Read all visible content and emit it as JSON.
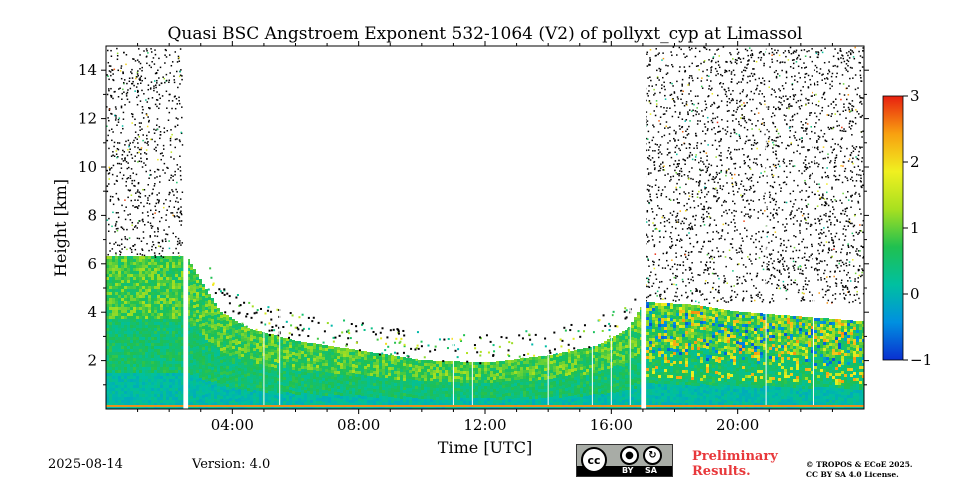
{
  "title": "Quasi BSC Angstroem Exponent 532-1064 (V2) of pollyxt_cyp at Limassol",
  "chart_data": {
    "type": "heatmap",
    "title": "Quasi BSC Angstroem Exponent 532-1064 (V2) of pollyxt_cyp at Limassol",
    "xlabel": "Time [UTC]",
    "ylabel": "Height [km]",
    "xlim_hours": [
      0,
      24
    ],
    "ylim_km": [
      0,
      15
    ],
    "xticks": [
      {
        "hour": 4,
        "label": "04:00"
      },
      {
        "hour": 8,
        "label": "08:00"
      },
      {
        "hour": 12,
        "label": "12:00"
      },
      {
        "hour": 16,
        "label": "16:00"
      },
      {
        "hour": 20,
        "label": "20:00"
      }
    ],
    "yticks": [
      {
        "km": 2,
        "label": "2"
      },
      {
        "km": 4,
        "label": "4"
      },
      {
        "km": 6,
        "label": "6"
      },
      {
        "km": 8,
        "label": "8"
      },
      {
        "km": 10,
        "label": "10"
      },
      {
        "km": 12,
        "label": "12"
      },
      {
        "km": 14,
        "label": "14"
      }
    ],
    "colorbar": {
      "min": -1,
      "max": 3,
      "ticks": [
        {
          "value": 3,
          "label": "3"
        },
        {
          "value": 2,
          "label": "2"
        },
        {
          "value": 1,
          "label": "1"
        },
        {
          "value": 0,
          "label": "0"
        },
        {
          "value": -1,
          "label": "−1"
        }
      ],
      "colors": [
        "#0a2fd0",
        "#0090e0",
        "#00c0a0",
        "#20c050",
        "#a8e020",
        "#f0f020",
        "#f8a010",
        "#e82010"
      ]
    },
    "layer_top_km": [
      [
        0,
        6.3
      ],
      [
        2.5,
        6.3
      ],
      [
        3.2,
        4.8
      ],
      [
        3.6,
        4.0
      ],
      [
        4.5,
        3.3
      ],
      [
        6.0,
        2.8
      ],
      [
        8.0,
        2.4
      ],
      [
        10.0,
        2.0
      ],
      [
        12.0,
        1.9
      ],
      [
        14.0,
        2.2
      ],
      [
        15.5,
        2.6
      ],
      [
        16.5,
        3.3
      ],
      [
        17.0,
        4.4
      ],
      [
        18.5,
        4.3
      ],
      [
        20.0,
        4.0
      ],
      [
        22.0,
        3.8
      ],
      [
        24.0,
        3.6
      ]
    ],
    "data_gaps_hours": [
      [
        2.45,
        2.6
      ],
      [
        16.95,
        17.1
      ]
    ],
    "noise_regions": [
      {
        "from_hour": 0.0,
        "to_hour": 2.4,
        "from_km": 6.3,
        "to_km": 15.0
      },
      {
        "from_hour": 17.0,
        "to_hour": 24.0,
        "from_km": 4.4,
        "to_km": 15.0
      }
    ]
  },
  "footer": {
    "date": "2025-08-14",
    "version": "Version: 4.0",
    "license_by": "BY",
    "license_sa": "SA",
    "license_cc": "cc",
    "preliminary_line1": "Preliminary",
    "preliminary_line2": "Results.",
    "copyright_line1": "© TROPOS & ECoE 2025.",
    "copyright_line2": "CC BY SA 4.0 License."
  }
}
